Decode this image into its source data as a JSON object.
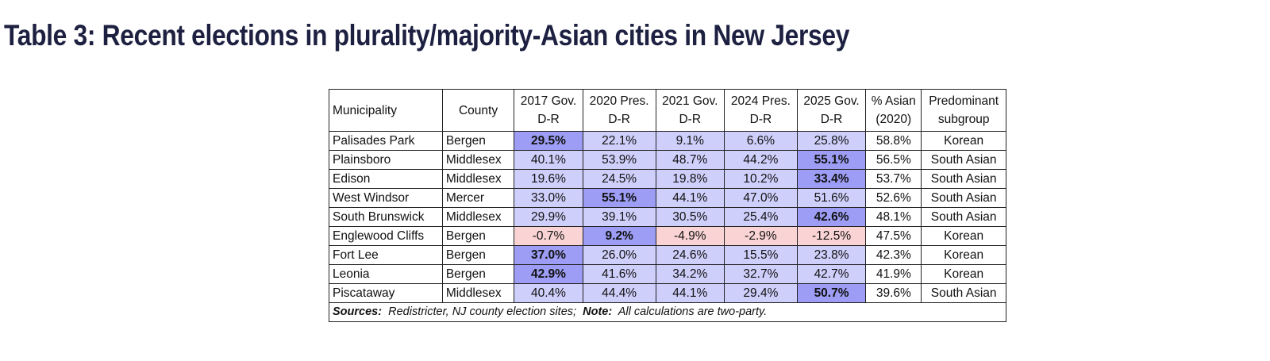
{
  "title": "Table 3: Recent elections in plurality/majority-Asian cities in New Jersey",
  "table": {
    "headers": [
      {
        "line1": "Municipality",
        "line2": ""
      },
      {
        "line1": "County",
        "line2": ""
      },
      {
        "line1": "2017 Gov.",
        "line2": "D-R"
      },
      {
        "line1": "2020 Pres.",
        "line2": "D-R"
      },
      {
        "line1": "2021 Gov.",
        "line2": "D-R"
      },
      {
        "line1": "2024 Pres.",
        "line2": "D-R"
      },
      {
        "line1": "2025 Gov.",
        "line2": "D-R"
      },
      {
        "line1": "% Asian",
        "line2": "(2020)"
      },
      {
        "line1": "Predominant",
        "line2": "subgroup"
      }
    ],
    "rows": [
      {
        "municipality": "Palisades Park",
        "county": "Bergen",
        "margins": [
          "29.5%",
          "22.1%",
          "9.1%",
          "6.6%",
          "25.8%"
        ],
        "shading": [
          "strong-d",
          "light-d",
          "light-d",
          "light-d",
          "light-d"
        ],
        "asian": "58.8%",
        "subgroup": "Korean"
      },
      {
        "municipality": "Plainsboro",
        "county": "Middlesex",
        "margins": [
          "40.1%",
          "53.9%",
          "48.7%",
          "44.2%",
          "55.1%"
        ],
        "shading": [
          "light-d",
          "light-d",
          "light-d",
          "light-d",
          "strong-d"
        ],
        "asian": "56.5%",
        "subgroup": "South Asian"
      },
      {
        "municipality": "Edison",
        "county": "Middlesex",
        "margins": [
          "19.6%",
          "24.5%",
          "19.8%",
          "10.2%",
          "33.4%"
        ],
        "shading": [
          "light-d",
          "light-d",
          "light-d",
          "light-d",
          "strong-d"
        ],
        "asian": "53.7%",
        "subgroup": "South Asian"
      },
      {
        "municipality": "West Windsor",
        "county": "Mercer",
        "margins": [
          "33.0%",
          "55.1%",
          "44.1%",
          "47.0%",
          "51.6%"
        ],
        "shading": [
          "light-d",
          "strong-d",
          "light-d",
          "light-d",
          "light-d"
        ],
        "asian": "52.6%",
        "subgroup": "South Asian"
      },
      {
        "municipality": "South Brunswick",
        "county": "Middlesex",
        "margins": [
          "29.9%",
          "39.1%",
          "30.5%",
          "25.4%",
          "42.6%"
        ],
        "shading": [
          "light-d",
          "light-d",
          "light-d",
          "light-d",
          "strong-d"
        ],
        "asian": "48.1%",
        "subgroup": "South Asian"
      },
      {
        "municipality": "Englewood Cliffs",
        "county": "Bergen",
        "margins": [
          "-0.7%",
          "9.2%",
          "-4.9%",
          "-2.9%",
          "-12.5%"
        ],
        "shading": [
          "light-r",
          "strong-d",
          "light-r",
          "light-r",
          "light-r"
        ],
        "asian": "47.5%",
        "subgroup": "Korean"
      },
      {
        "municipality": "Fort Lee",
        "county": "Bergen",
        "margins": [
          "37.0%",
          "26.0%",
          "24.6%",
          "15.5%",
          "23.8%"
        ],
        "shading": [
          "strong-d",
          "light-d",
          "light-d",
          "light-d",
          "light-d"
        ],
        "asian": "42.3%",
        "subgroup": "Korean"
      },
      {
        "municipality": "Leonia",
        "county": "Bergen",
        "margins": [
          "42.9%",
          "41.6%",
          "34.2%",
          "32.7%",
          "42.7%"
        ],
        "shading": [
          "strong-d",
          "light-d",
          "light-d",
          "light-d",
          "light-d"
        ],
        "asian": "41.9%",
        "subgroup": "Korean"
      },
      {
        "municipality": "Piscataway",
        "county": "Middlesex",
        "margins": [
          "40.4%",
          "44.4%",
          "44.1%",
          "29.4%",
          "50.7%"
        ],
        "shading": [
          "light-d",
          "light-d",
          "light-d",
          "light-d",
          "strong-d"
        ],
        "asian": "39.6%",
        "subgroup": "South Asian"
      }
    ],
    "footer": {
      "sources_label": "Sources:",
      "sources_text": "Redistricter, NJ county election sites;",
      "note_label": "Note:",
      "note_text": "All calculations are two-party."
    }
  },
  "colors": {
    "light-d": "#cfcffb",
    "strong-d": "#9d9df5",
    "light-r": "#fad4d4",
    "title": "#1d2040"
  }
}
